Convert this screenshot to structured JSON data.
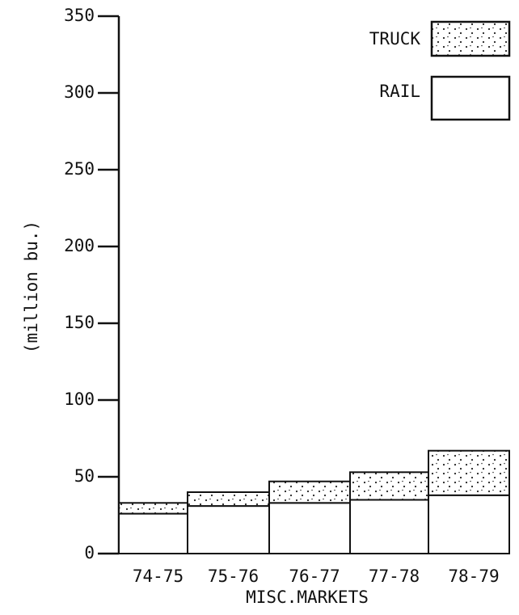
{
  "chart_data": {
    "type": "bar",
    "stacked": true,
    "title": "",
    "xlabel": "MISC.MARKETS",
    "ylabel": "(million bu.)",
    "ylim": [
      0,
      350
    ],
    "yticks": [
      0,
      50,
      100,
      150,
      200,
      250,
      300,
      350
    ],
    "categories": [
      "74-75",
      "75-76",
      "76-77",
      "77-78",
      "78-79"
    ],
    "series": [
      {
        "name": "RAIL",
        "values": [
          26,
          31,
          33,
          35,
          38
        ],
        "pattern": "plain"
      },
      {
        "name": "TRUCK",
        "values": [
          7,
          9,
          14,
          18,
          29
        ],
        "pattern": "dotted"
      }
    ],
    "legend": {
      "placement": "top-right",
      "order": [
        "TRUCK",
        "RAIL"
      ]
    },
    "grid": false
  }
}
